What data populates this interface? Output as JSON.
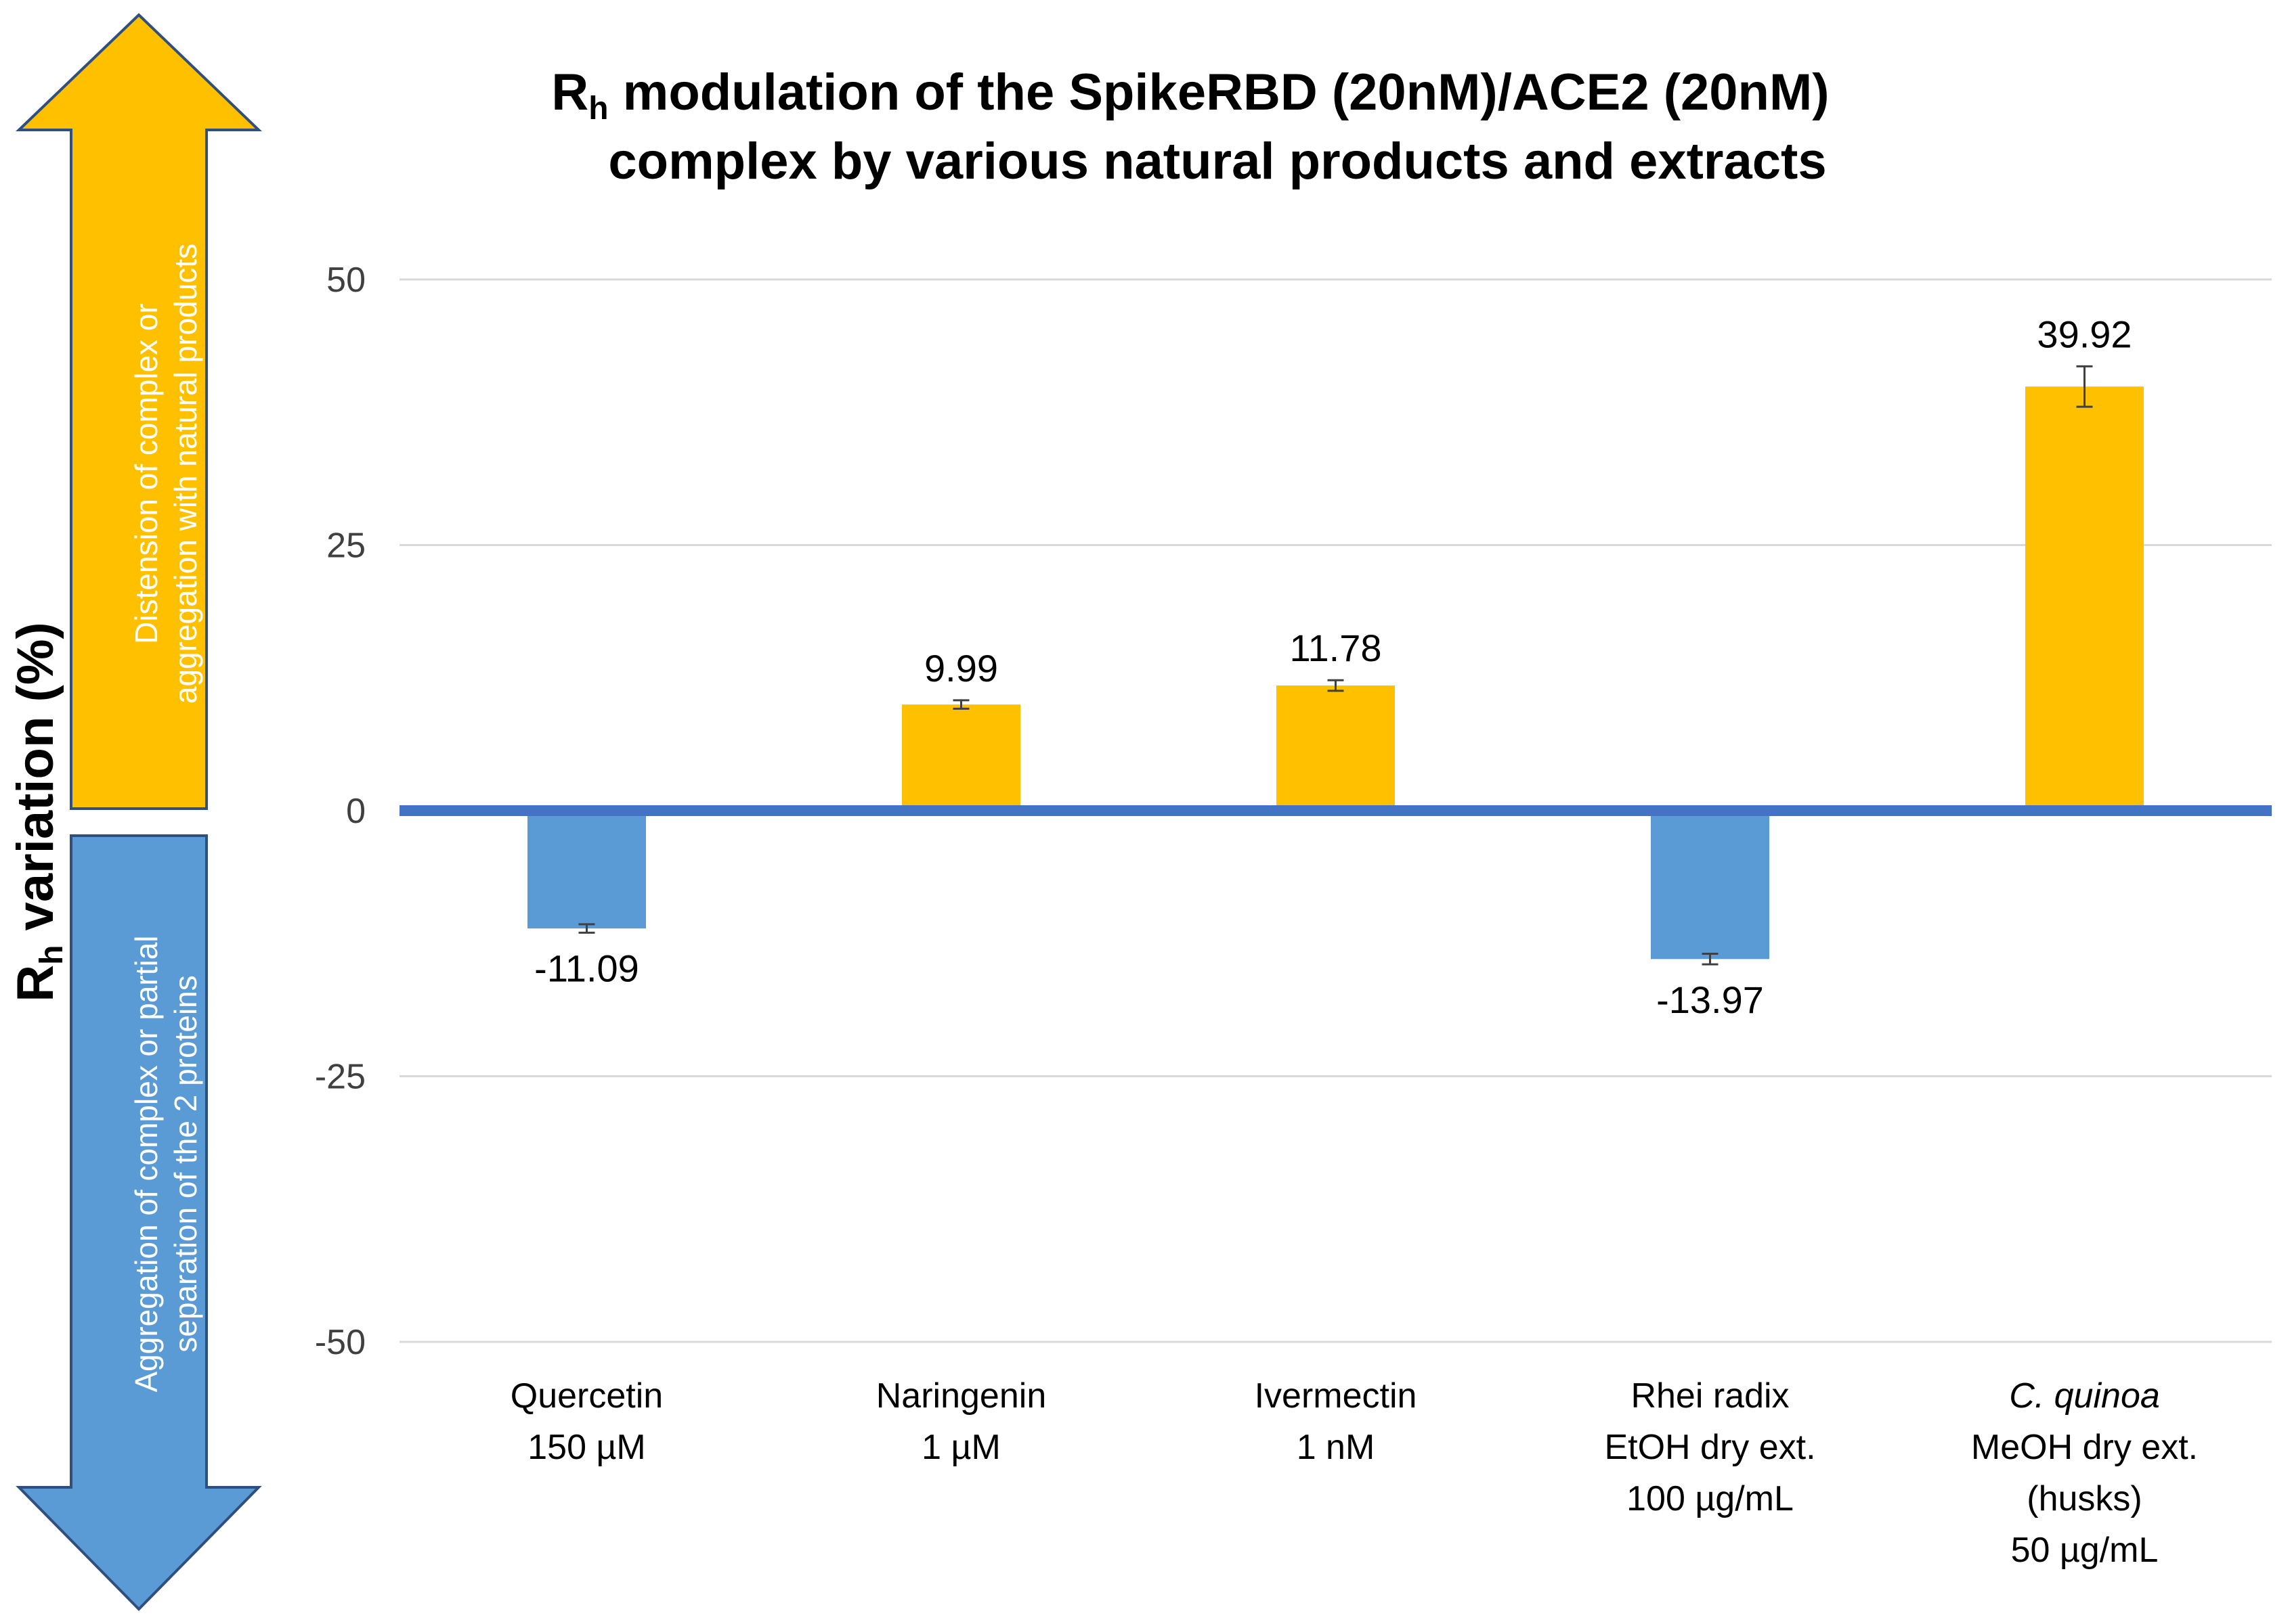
{
  "chart_data": {
    "type": "bar",
    "title": {
      "line1_main": "R",
      "line1_sub": "h",
      "line1_rest": " modulation of the SpikeRBD (20nM)/ACE2 (20nM)",
      "line2": "complex by various natural products and extracts"
    },
    "ylabel": {
      "main": "R",
      "sub": "h",
      "rest": " variation (%)"
    },
    "xlabel": "",
    "ylim": [
      -50,
      50
    ],
    "yticks": [
      50,
      25,
      0,
      -25,
      -50
    ],
    "grid": true,
    "categories": [
      {
        "lines": [
          {
            "text": "Quercetin",
            "italic": false
          },
          {
            "text": "150 µM",
            "italic": false
          }
        ]
      },
      {
        "lines": [
          {
            "text": "Naringenin",
            "italic": false
          },
          {
            "text": "1 µM",
            "italic": false
          }
        ]
      },
      {
        "lines": [
          {
            "text": "Ivermectin",
            "italic": false
          },
          {
            "text": "1 nM",
            "italic": false
          }
        ]
      },
      {
        "lines": [
          {
            "text": "Rhei radix",
            "italic": false
          },
          {
            "text": "EtOH dry ext.",
            "italic": false
          },
          {
            "text": "100 µg/mL",
            "italic": false
          }
        ]
      },
      {
        "lines": [
          {
            "text": "C. quinoa",
            "italic": true
          },
          {
            "text": "MeOH dry ext.",
            "italic": false
          },
          {
            "text": "(husks)",
            "italic": false
          },
          {
            "text": "50 µg/mL",
            "italic": false
          }
        ]
      }
    ],
    "values": [
      -11.09,
      9.99,
      11.78,
      -13.97,
      39.92
    ],
    "labels": [
      "-11.09",
      "9.99",
      "11.78",
      "-13.97",
      "39.92"
    ],
    "errors": [
      0.4,
      0.4,
      0.5,
      0.5,
      1.9
    ],
    "colors": {
      "positive": "#FFC000",
      "negative": "#5B9BD5",
      "zero_line": "#4472C4",
      "grid": "#D9D9D9"
    },
    "side_arrows": {
      "up": {
        "line1": "Distension of complex or",
        "line2": "aggregation with natural products",
        "color": "#FFC000"
      },
      "down": {
        "line1": "Aggregation of complex or partial",
        "line2": "separation of the 2 proteins",
        "color": "#5B9BD5"
      }
    }
  }
}
